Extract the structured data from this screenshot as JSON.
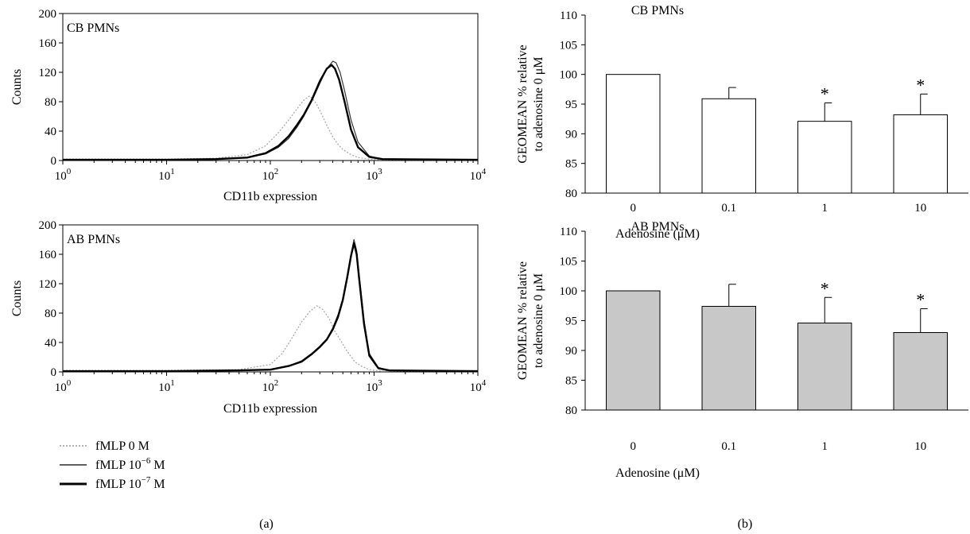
{
  "figure": {
    "panel_a_label": "(a)",
    "panel_b_label": "(b)"
  },
  "legend": {
    "items": [
      {
        "label": "fMLP 0 M",
        "style": "dotted"
      },
      {
        "label": "fMLP 10",
        "exp": "−6",
        "unit": " M",
        "style": "thin"
      },
      {
        "label": "fMLP 10",
        "exp": "−7",
        "unit": " M",
        "style": "thick"
      }
    ]
  },
  "chart_data": [
    {
      "type": "line",
      "id": "hist-cb",
      "panel_label": "CB PMNs",
      "xlabel": "CD11b expression",
      "ylabel": "Counts",
      "x_scale": "log",
      "xlim": [
        1,
        10000
      ],
      "ylim": [
        0,
        200
      ],
      "x_ticks": [
        {
          "base": "10",
          "exp": "0"
        },
        {
          "base": "10",
          "exp": "1"
        },
        {
          "base": "10",
          "exp": "2"
        },
        {
          "base": "10",
          "exp": "3"
        },
        {
          "base": "10",
          "exp": "4"
        }
      ],
      "y_ticks": [
        "0",
        "40",
        "80",
        "120",
        "160",
        "200"
      ],
      "series": [
        {
          "name": "fMLP 0 M",
          "style": "dotted",
          "color": "#aaaaaa",
          "x": [
            1,
            10,
            30,
            60,
            90,
            120,
            150,
            180,
            210,
            240,
            270,
            300,
            350,
            400,
            450,
            500,
            600,
            700,
            900,
            1200,
            10000
          ],
          "y": [
            2,
            2,
            3,
            8,
            20,
            38,
            55,
            70,
            82,
            88,
            80,
            68,
            48,
            32,
            22,
            15,
            8,
            4,
            2,
            1,
            1
          ]
        },
        {
          "name": "fMLP 10−6 M",
          "style": "thin",
          "color": "#333333",
          "x": [
            1,
            10,
            30,
            60,
            90,
            120,
            150,
            180,
            210,
            250,
            300,
            350,
            400,
            430,
            470,
            520,
            600,
            700,
            900,
            1200,
            10000
          ],
          "y": [
            1,
            1,
            2,
            4,
            9,
            18,
            30,
            45,
            60,
            80,
            105,
            125,
            135,
            133,
            120,
            95,
            55,
            25,
            6,
            2,
            1
          ]
        },
        {
          "name": "fMLP 10−7 M",
          "style": "thick",
          "color": "#000000",
          "x": [
            1,
            10,
            30,
            60,
            90,
            120,
            150,
            180,
            210,
            250,
            300,
            350,
            390,
            420,
            460,
            520,
            600,
            700,
            900,
            1200,
            10000
          ],
          "y": [
            1,
            1,
            2,
            4,
            10,
            20,
            33,
            48,
            62,
            82,
            108,
            125,
            130,
            125,
            110,
            80,
            42,
            18,
            5,
            2,
            1
          ]
        }
      ]
    },
    {
      "type": "line",
      "id": "hist-ab",
      "panel_label": "AB PMNs",
      "xlabel": "CD11b expression",
      "ylabel": "Counts",
      "x_scale": "log",
      "xlim": [
        1,
        10000
      ],
      "ylim": [
        0,
        200
      ],
      "x_ticks": [
        {
          "base": "10",
          "exp": "0"
        },
        {
          "base": "10",
          "exp": "1"
        },
        {
          "base": "10",
          "exp": "2"
        },
        {
          "base": "10",
          "exp": "3"
        },
        {
          "base": "10",
          "exp": "4"
        }
      ],
      "y_ticks": [
        "0",
        "40",
        "80",
        "120",
        "160",
        "200"
      ],
      "series": [
        {
          "name": "fMLP 0 M",
          "style": "dotted",
          "color": "#aaaaaa",
          "x": [
            1,
            10,
            50,
            100,
            130,
            160,
            200,
            240,
            280,
            320,
            370,
            420,
            480,
            550,
            650,
            750,
            900,
            1200,
            10000
          ],
          "y": [
            2,
            2,
            3,
            10,
            25,
            45,
            68,
            82,
            90,
            85,
            72,
            55,
            42,
            28,
            14,
            8,
            3,
            1,
            1
          ]
        },
        {
          "name": "fMLP 10−6 M",
          "style": "thin",
          "color": "#333333",
          "x": [
            1,
            10,
            50,
            100,
            150,
            200,
            250,
            300,
            350,
            400,
            450,
            500,
            550,
            600,
            640,
            680,
            720,
            800,
            900,
            1100,
            1400,
            10000
          ],
          "y": [
            1,
            1,
            2,
            3,
            8,
            15,
            25,
            35,
            45,
            60,
            78,
            100,
            130,
            160,
            180,
            165,
            130,
            70,
            25,
            6,
            2,
            1
          ]
        },
        {
          "name": "fMLP 10−7 M",
          "style": "thick",
          "color": "#000000",
          "x": [
            1,
            10,
            50,
            100,
            150,
            200,
            250,
            300,
            350,
            400,
            450,
            500,
            550,
            600,
            640,
            680,
            720,
            800,
            900,
            1100,
            1400,
            10000
          ],
          "y": [
            1,
            1,
            2,
            3,
            8,
            14,
            24,
            34,
            44,
            58,
            75,
            98,
            128,
            158,
            175,
            160,
            125,
            65,
            22,
            5,
            2,
            1
          ]
        }
      ]
    },
    {
      "type": "bar",
      "id": "bar-cb",
      "title": "CB PMNs",
      "xlabel": "Adenosine (μM)",
      "ylabel": [
        "GEOMEAN % relative",
        "to adenosine 0 μM"
      ],
      "categories": [
        "0",
        "0.1",
        "1",
        "10"
      ],
      "values": [
        100,
        95.9,
        92.1,
        93.2
      ],
      "errors": [
        0,
        1.9,
        3.1,
        3.5
      ],
      "significance": [
        "",
        "",
        "*",
        "*"
      ],
      "ylim": [
        80,
        110
      ],
      "y_ticks": [
        "80",
        "85",
        "90",
        "95",
        "100",
        "105",
        "110"
      ],
      "bar_color": "#ffffff"
    },
    {
      "type": "bar",
      "id": "bar-ab",
      "title": "AB PMNs",
      "xlabel": "Adenosine (μM)",
      "ylabel": [
        "GEOMEAN % relative",
        "to adenosine 0 μM"
      ],
      "categories": [
        "0",
        "0.1",
        "1",
        "10"
      ],
      "values": [
        100,
        97.4,
        94.6,
        93.0
      ],
      "errors": [
        0,
        3.7,
        4.3,
        4.0
      ],
      "significance": [
        "",
        "",
        "*",
        "*"
      ],
      "ylim": [
        80,
        110
      ],
      "y_ticks": [
        "80",
        "85",
        "90",
        "95",
        "100",
        "105",
        "110"
      ],
      "bar_color": "#c8c8c8"
    }
  ]
}
